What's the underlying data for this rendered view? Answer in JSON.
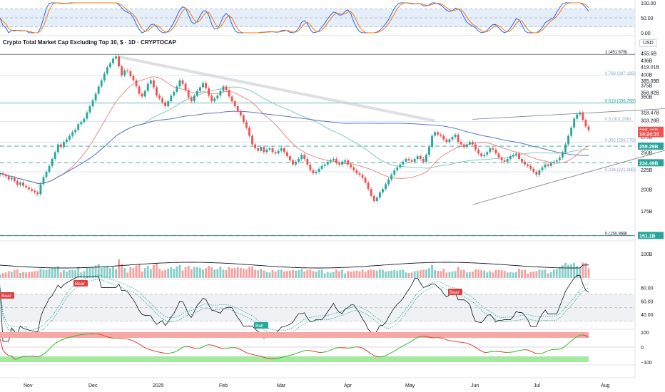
{
  "header": {
    "title": "Crypto Total Market Cap Excluding Top 10, $ · 1D · CRYPTOCAP",
    "currency": "USD"
  },
  "colors": {
    "up": "#26a69a",
    "down": "#ef5350",
    "ma_blue": "#5b74c9",
    "ma_red": "#f28b82",
    "ma_teal": "#86c7c2",
    "stoch_k": "#2962ff",
    "stoch_d": "#f57c00",
    "fib": "#8fa7c9",
    "grid_dashed": "#7fc6b6",
    "badge_red": "#e0413f",
    "badge_green": "#26a69a"
  },
  "chart_data": {
    "type": "candlestick",
    "title": "Crypto Total Market Cap Excluding Top 10, $ · 1D · CRYPTOCAP",
    "y_scale": "log",
    "ylim": [
      150,
      460
    ],
    "x_axis": {
      "ticks": [
        "Nov",
        "Dec",
        "2025",
        "Feb",
        "Mar",
        "Apr",
        "May",
        "Jun",
        "Jul",
        "Aug"
      ]
    },
    "y_axis": {
      "ticks": [
        "455.5B",
        "436B",
        "419.01B",
        "400B",
        "385.09B",
        "375B",
        "358.82B",
        "350B",
        "318.47B",
        "303.28B",
        "275B",
        "250B",
        "225B",
        "200B",
        "175B"
      ],
      "tick_values": [
        455.5,
        436,
        419.01,
        400,
        385.09,
        375,
        358.82,
        350,
        318.47,
        303.28,
        275,
        250,
        225,
        200,
        175
      ]
    },
    "price_labels": [
      {
        "text": "285.41B",
        "value": 285.41,
        "color": "#ef5350"
      },
      {
        "text": "14:24:31",
        "value": 279.5,
        "color": "#ef5350"
      },
      {
        "text": "259.29B",
        "value": 259.29,
        "color": "#26a69a"
      },
      {
        "text": "234.49B",
        "value": 234.49,
        "color": "#26a69a"
      },
      {
        "text": "151.1B",
        "value": 151.1,
        "color": "#26a69a"
      }
    ],
    "fib_levels": [
      {
        "label": "1 (451.67B)",
        "value": 451.67
      },
      {
        "label": "0.786 (397.18B)",
        "value": 397.18
      },
      {
        "label": "0.618 (336.76B)",
        "value": 336.76
      },
      {
        "label": "0.5 (301.29B)",
        "value": 301.29
      },
      {
        "label": "0.382 (265.77B)",
        "value": 265.77
      },
      {
        "label": "0.236 (221.98B)",
        "value": 221.98
      },
      {
        "label": "0 (150.86B)",
        "value": 150.86
      }
    ],
    "closes": [
      220,
      218,
      216,
      212,
      214,
      210,
      205,
      208,
      204,
      202,
      200,
      198,
      196,
      194,
      206,
      215,
      222,
      230,
      240,
      250,
      262,
      258,
      266,
      270,
      276,
      282,
      286,
      296,
      300,
      306,
      318,
      330,
      342,
      356,
      372,
      386,
      402,
      418,
      428,
      440,
      446,
      420,
      398,
      410,
      408,
      396,
      386,
      372,
      356,
      350,
      362,
      378,
      386,
      370,
      352,
      346,
      338,
      330,
      340,
      352,
      360,
      372,
      386,
      378,
      364,
      348,
      340,
      352,
      362,
      370,
      380,
      368,
      352,
      340,
      346,
      352,
      362,
      372,
      364,
      350,
      340,
      330,
      320,
      312,
      300,
      290,
      276,
      262,
      256,
      252,
      258,
      250,
      254,
      256,
      250,
      248,
      252,
      256,
      250,
      244,
      238,
      232,
      236,
      240,
      246,
      240,
      232,
      224,
      220,
      222,
      226,
      230,
      232,
      236,
      238,
      240,
      234,
      232,
      236,
      238,
      232,
      228,
      224,
      220,
      218,
      214,
      208,
      200,
      192,
      186,
      190,
      196,
      200,
      206,
      212,
      218,
      224,
      228,
      232,
      236,
      240,
      238,
      236,
      240,
      244,
      240,
      236,
      246,
      258,
      276,
      282,
      278,
      276,
      270,
      266,
      270,
      274,
      278,
      266,
      262,
      258,
      262,
      266,
      262,
      254,
      248,
      244,
      246,
      250,
      256,
      254,
      248,
      242,
      238,
      236,
      240,
      244,
      246,
      248,
      240,
      236,
      232,
      230,
      226,
      222,
      218,
      224,
      228,
      232,
      230,
      234,
      236,
      238,
      242,
      250,
      262,
      276,
      290,
      306,
      314,
      318,
      304,
      292,
      285.4
    ],
    "overlays": [
      "moving average (blue)",
      "moving average (red)",
      "moving average (teal)",
      "trendlines",
      "fibonacci retracement"
    ],
    "indicators": [
      {
        "name": "stochastic",
        "ticks": [
          "100.00",
          "50.00",
          "0.00"
        ]
      },
      {
        "name": "volume",
        "ticks": [
          "100B"
        ]
      },
      {
        "name": "rsi",
        "ticks": [
          "80.00",
          "60.00",
          "40.00"
        ],
        "badges": [
          "Bear",
          "Bear",
          "Bear",
          "Bull"
        ]
      },
      {
        "name": "oscillator",
        "ticks": [
          "100",
          "0",
          "−100"
        ]
      }
    ]
  }
}
